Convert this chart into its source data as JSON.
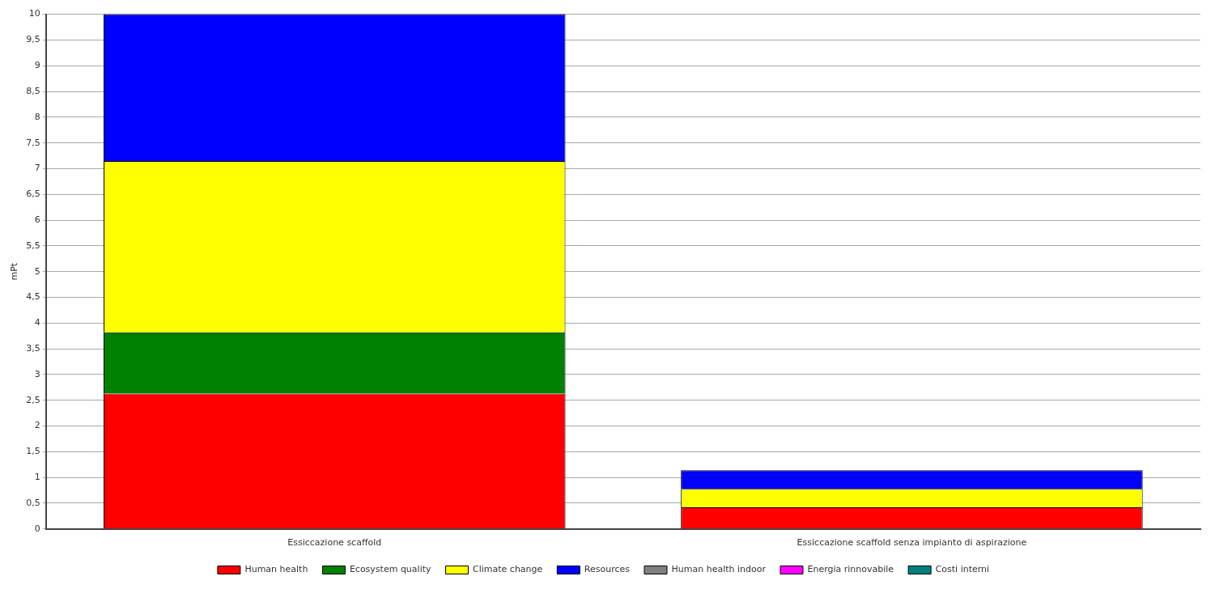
{
  "chart_data": {
    "type": "bar",
    "ylabel": "mPt",
    "categories": [
      "Essiccazione scaffold",
      "Essiccazione scaffold senza impianto di aspirazione"
    ],
    "stacked": true,
    "ylim": [
      0,
      10
    ],
    "yticks": [
      0,
      {
        "value": 0.5,
        "label": "0,5"
      },
      1,
      {
        "value": 1.5,
        "label": "1,5"
      },
      2,
      {
        "value": 2.5,
        "label": "2,5"
      },
      3,
      {
        "value": 3.5,
        "label": "3,5"
      },
      4,
      {
        "value": 4.5,
        "label": "4,5"
      },
      5,
      {
        "value": 5.5,
        "label": "5,5"
      },
      6,
      {
        "value": 6.5,
        "label": "6,5"
      },
      7,
      {
        "value": 7.5,
        "label": "7,5"
      },
      8,
      {
        "value": 8.5,
        "label": "8,5"
      },
      9,
      {
        "value": 9.5,
        "label": "9,5"
      },
      10
    ],
    "grid": "y",
    "legend": "bottom",
    "series": [
      {
        "name": "Human health",
        "color": "#ff0000",
        "values": [
          2.63,
          0.42
        ]
      },
      {
        "name": "Ecosystem quality",
        "color": "#008000",
        "values": [
          1.19,
          0
        ]
      },
      {
        "name": "Climate change",
        "color": "#ffff00",
        "values": [
          3.33,
          0.36
        ]
      },
      {
        "name": "Resources",
        "color": "#0000ff",
        "values": [
          2.85,
          0.36
        ]
      },
      {
        "name": "Human health indoor",
        "color": "#808080",
        "values": [
          0,
          0
        ]
      },
      {
        "name": "Energia rinnovabile",
        "color": "#ff00ff",
        "values": [
          0,
          0
        ]
      },
      {
        "name": "Costi interni",
        "color": "#008080",
        "values": [
          0,
          0
        ]
      }
    ]
  }
}
